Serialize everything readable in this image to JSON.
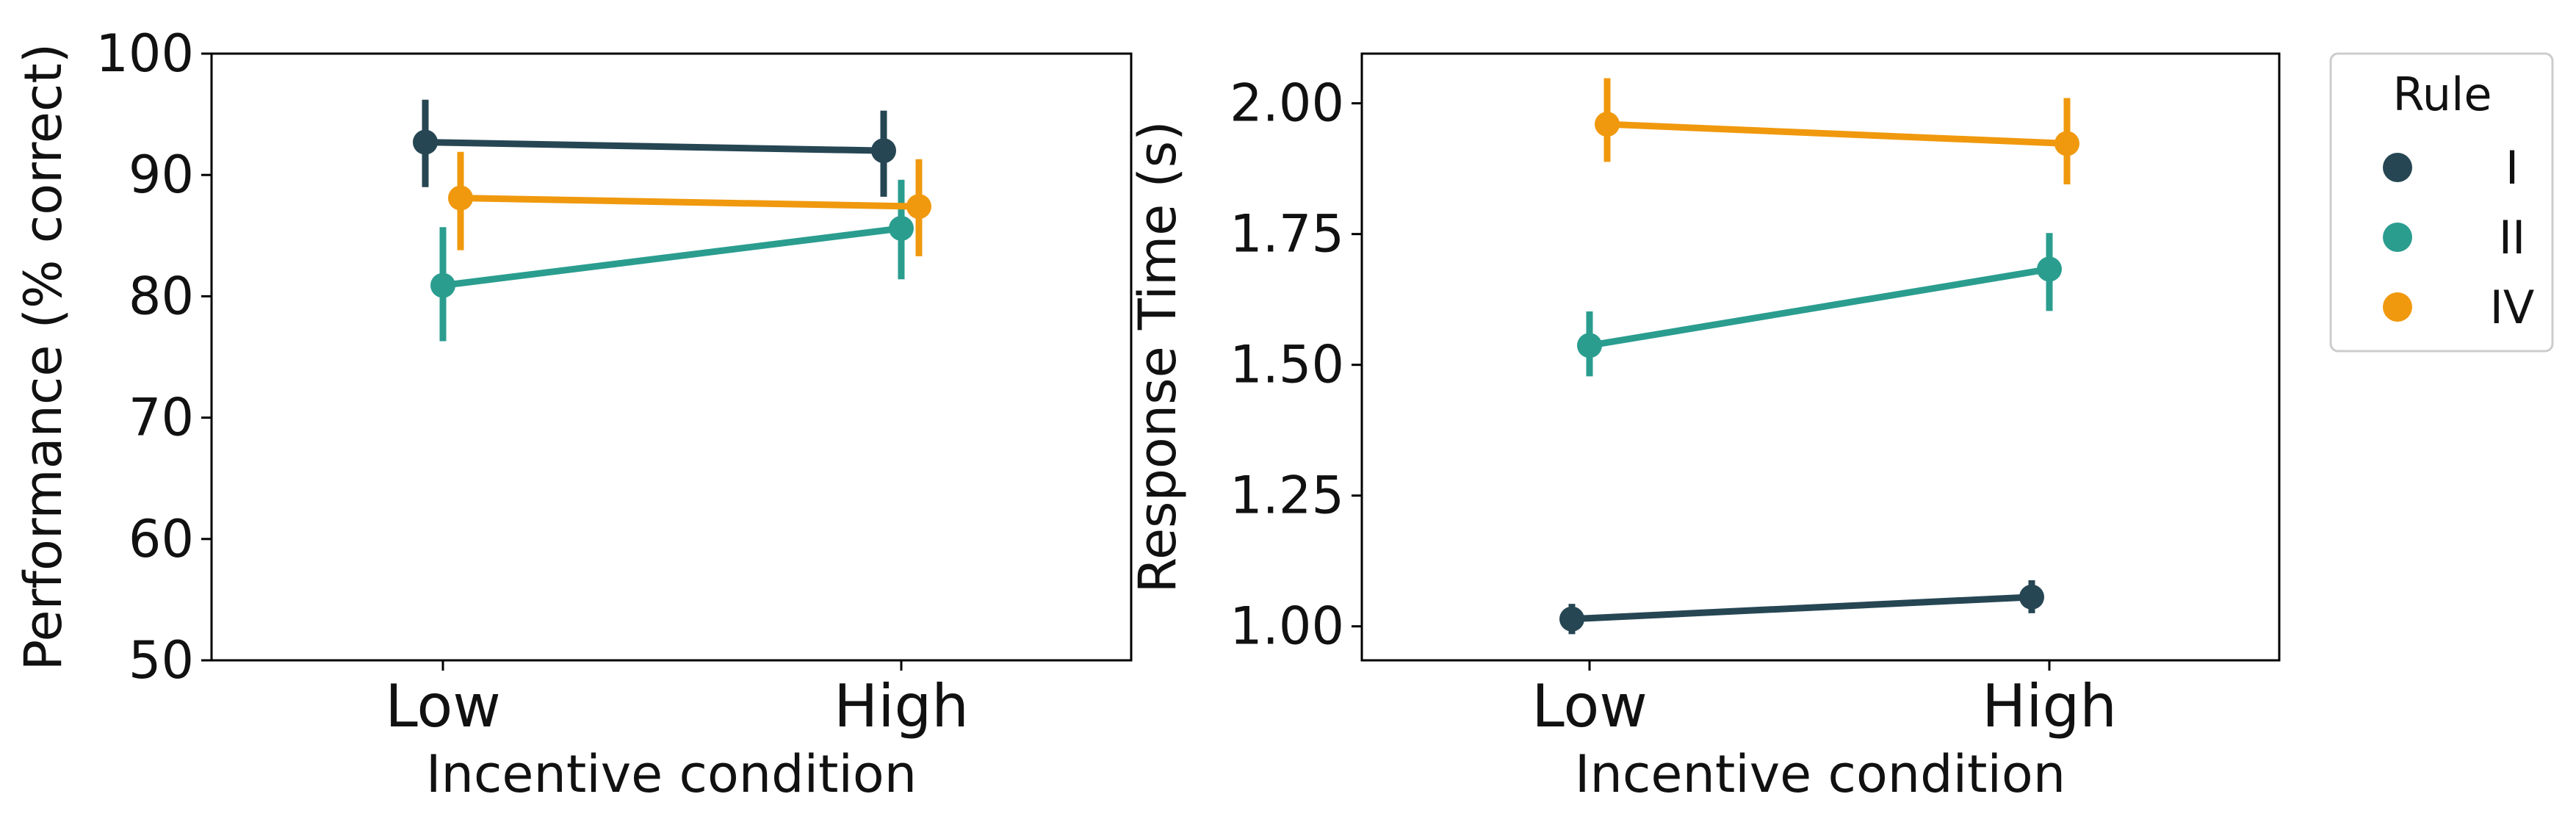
{
  "colors": {
    "I": "#264653",
    "II": "#2a9d8f",
    "IV": "#f0990e"
  },
  "legend": {
    "title": "Rule",
    "entries": [
      "I",
      "II",
      "IV"
    ],
    "placement": "outside-right-top"
  },
  "chart_data": [
    {
      "type": "line",
      "title": "",
      "xlabel": "Incentive condition",
      "ylabel": "Performance (% correct)",
      "categories": [
        "Low",
        "High"
      ],
      "ylim": [
        50,
        100
      ],
      "yticks": [
        "50",
        "60",
        "70",
        "80",
        "90",
        "100"
      ],
      "grid": false,
      "series": [
        {
          "name": "I",
          "values": [
            92.7,
            92.0
          ],
          "ci_low": [
            89.0,
            88.2
          ],
          "ci_high": [
            96.2,
            95.3
          ]
        },
        {
          "name": "II",
          "values": [
            80.9,
            85.6
          ],
          "ci_low": [
            76.3,
            81.4
          ],
          "ci_high": [
            85.7,
            89.6
          ]
        },
        {
          "name": "IV",
          "values": [
            88.1,
            87.4
          ],
          "ci_low": [
            83.8,
            83.3
          ],
          "ci_high": [
            91.9,
            91.3
          ]
        }
      ]
    },
    {
      "type": "line",
      "title": "",
      "xlabel": "Incentive condition",
      "ylabel": "Response Time (s)",
      "categories": [
        "Low",
        "High"
      ],
      "ylim": [
        0.935,
        2.095
      ],
      "yticks": [
        "1.00",
        "1.25",
        "1.50",
        "1.75",
        "2.00"
      ],
      "grid": false,
      "series": [
        {
          "name": "I",
          "values": [
            1.014,
            1.056
          ],
          "ci_low": [
            0.985,
            1.025
          ],
          "ci_high": [
            1.043,
            1.088
          ]
        },
        {
          "name": "II",
          "values": [
            1.537,
            1.683
          ],
          "ci_low": [
            1.478,
            1.603
          ],
          "ci_high": [
            1.602,
            1.752
          ]
        },
        {
          "name": "IV",
          "values": [
            1.96,
            1.923
          ],
          "ci_low": [
            1.888,
            1.845
          ],
          "ci_high": [
            2.048,
            2.01
          ]
        }
      ]
    }
  ]
}
